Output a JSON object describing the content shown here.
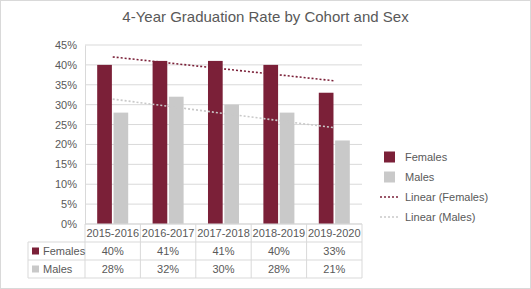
{
  "chart_data": {
    "type": "bar",
    "title": "4-Year Graduation Rate by Cohort and Sex",
    "categories": [
      "2015-2016",
      "2016-2017",
      "2017-2018",
      "2018-2019",
      "2019-2020"
    ],
    "series": [
      {
        "name": "Females",
        "color": "#7b2038",
        "values": [
          40,
          41,
          41,
          40,
          33
        ],
        "value_labels": [
          "40%",
          "41%",
          "41%",
          "40%",
          "33%"
        ]
      },
      {
        "name": "Males",
        "color": "#c9c9c9",
        "values": [
          28,
          32,
          30,
          28,
          21
        ],
        "value_labels": [
          "28%",
          "32%",
          "30%",
          "28%",
          "21%"
        ]
      },
      {
        "name": "Linear (Females)",
        "type": "line",
        "line_style": "dotted",
        "color": "#7b2038",
        "values": [
          42,
          40.5,
          39,
          37.5,
          36
        ]
      },
      {
        "name": "Linear (Males)",
        "type": "line",
        "line_style": "dotted",
        "color": "#c9c9c9",
        "values": [
          31.4,
          29.6,
          27.8,
          26,
          24.2
        ]
      }
    ],
    "ylim": [
      0,
      45
    ],
    "yticks": [
      {
        "value": 0,
        "label": "0%"
      },
      {
        "value": 5,
        "label": "5%"
      },
      {
        "value": 10,
        "label": "10%"
      },
      {
        "value": 15,
        "label": "15%"
      },
      {
        "value": 20,
        "label": "20%"
      },
      {
        "value": 25,
        "label": "25%"
      },
      {
        "value": 30,
        "label": "30%"
      },
      {
        "value": 35,
        "label": "35%"
      },
      {
        "value": 40,
        "label": "40%"
      },
      {
        "value": 45,
        "label": "45%"
      }
    ],
    "grid": true,
    "legend": "right"
  }
}
